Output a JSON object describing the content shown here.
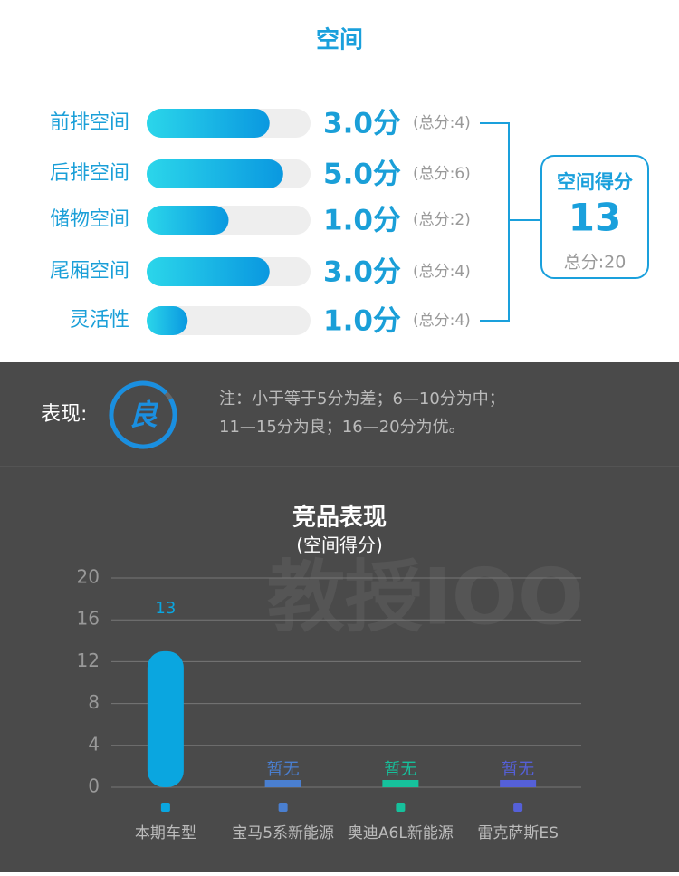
{
  "header": {
    "title": "空间"
  },
  "scores": [
    {
      "label": "前排空间",
      "score": {
        "value": 3,
        "label": "3.0分"
      },
      "max": {
        "value": 4,
        "label": "(总分:4)"
      }
    },
    {
      "label": "后排空间",
      "score": {
        "value": 5,
        "label": "5.0分"
      },
      "max": {
        "value": 6,
        "label": "(总分:6)"
      }
    },
    {
      "label": "储物空间",
      "score": {
        "value": 1,
        "label": "1.0分"
      },
      "max": {
        "value": 2,
        "label": "(总分:2)"
      }
    },
    {
      "label": "尾厢空间",
      "score": {
        "value": 3,
        "label": "3.0分"
      },
      "max": {
        "value": 4,
        "label": "(总分:4)"
      }
    },
    {
      "label": "灵活性",
      "score": {
        "value": 1,
        "label": "1.0分"
      },
      "max": {
        "value": 4,
        "label": "(总分:4)"
      }
    }
  ],
  "total": {
    "title": "空间得分",
    "value": 13,
    "max": "总分:20"
  },
  "rating": {
    "label": "表现:",
    "grade": "良",
    "note": [
      "注：小于等于5分为差；6—10分为中；",
      "11—15分为良；16—20分为优。"
    ]
  },
  "watermark": "教授IOO",
  "chart_data": {
    "type": "bar",
    "title": "竞品表现",
    "subtitle": "(空间得分)",
    "categories": [
      "本期车型",
      "宝马5系新能源",
      "奥迪A6L新能源",
      "雷克萨斯ES"
    ],
    "values": [
      13,
      null,
      null,
      null
    ],
    "value_labels": [
      "13",
      "暂无",
      "暂无",
      "暂无"
    ],
    "colors": [
      "#0aa6e0",
      "#4a7fd0",
      "#16c19c",
      "#5560d8"
    ],
    "ylim": [
      0,
      20
    ],
    "yticks": [
      0,
      4,
      8,
      12,
      16,
      20
    ],
    "grid": true
  }
}
